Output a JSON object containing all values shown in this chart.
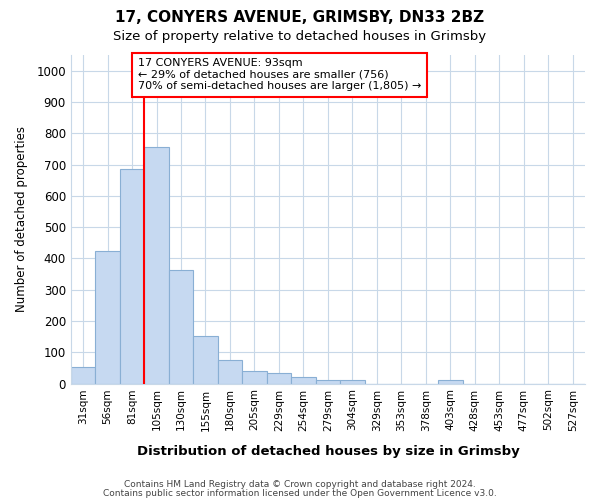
{
  "title1": "17, CONYERS AVENUE, GRIMSBY, DN33 2BZ",
  "title2": "Size of property relative to detached houses in Grimsby",
  "xlabel": "Distribution of detached houses by size in Grimsby",
  "ylabel": "Number of detached properties",
  "bar_labels": [
    "31sqm",
    "56sqm",
    "81sqm",
    "105sqm",
    "130sqm",
    "155sqm",
    "180sqm",
    "205sqm",
    "229sqm",
    "254sqm",
    "279sqm",
    "304sqm",
    "329sqm",
    "353sqm",
    "378sqm",
    "403sqm",
    "428sqm",
    "453sqm",
    "477sqm",
    "502sqm",
    "527sqm"
  ],
  "bar_values": [
    52,
    425,
    685,
    755,
    362,
    153,
    75,
    40,
    33,
    20,
    12,
    10,
    0,
    0,
    0,
    10,
    0,
    0,
    0,
    0,
    0
  ],
  "bar_color": "#c6d9f1",
  "bar_edge_color": "#89afd4",
  "ylim": [
    0,
    1050
  ],
  "yticks": [
    0,
    100,
    200,
    300,
    400,
    500,
    600,
    700,
    800,
    900,
    1000
  ],
  "red_line_x": 2.5,
  "annotation_text1": "17 CONYERS AVENUE: 93sqm",
  "annotation_text2": "← 29% of detached houses are smaller (756)",
  "annotation_text3": "70% of semi-detached houses are larger (1,805) →",
  "footnote1": "Contains HM Land Registry data © Crown copyright and database right 2024.",
  "footnote2": "Contains public sector information licensed under the Open Government Licence v3.0.",
  "background_color": "#ffffff",
  "grid_color": "#c8d8e8"
}
